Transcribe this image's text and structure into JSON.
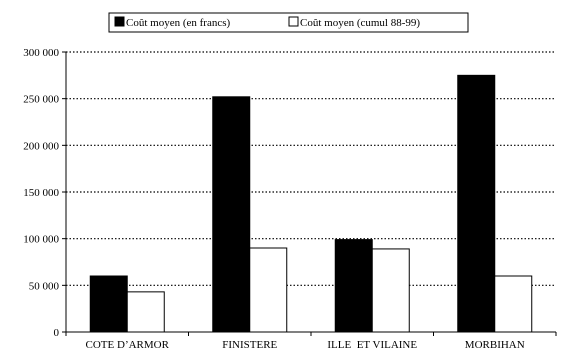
{
  "chart_data": {
    "type": "bar",
    "categories": [
      "COTE D’ARMOR",
      "FINISTERE",
      "ILLE  ET VILAINE",
      "MORBIHAN"
    ],
    "series": [
      {
        "name": "Coût moyen (en francs)",
        "values": [
          60000,
          252000,
          99000,
          275000
        ],
        "color": "#000000"
      },
      {
        "name": "Coût moyen (cumul 88-99)",
        "values": [
          43000,
          90000,
          89000,
          60000
        ],
        "color": "#ffffff"
      }
    ],
    "yticks": [
      "0",
      "50 000",
      "100 000",
      "150 000",
      "200 000",
      "250 000",
      "300 000"
    ],
    "ylim": [
      0,
      300000
    ],
    "grid": true,
    "grid_style": "dotted",
    "legend_position": "top"
  }
}
